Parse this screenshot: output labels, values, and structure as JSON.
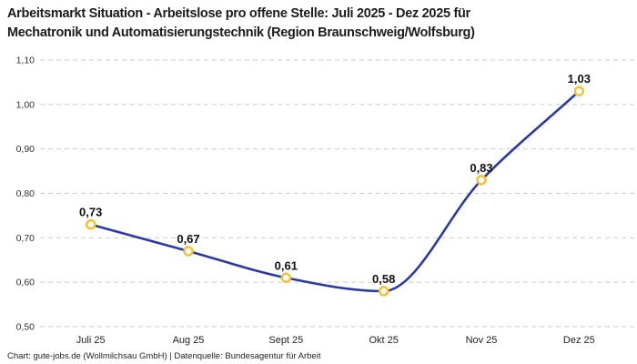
{
  "header": {
    "title_line1": "Arbeitsmarkt Situation - Arbeitslose pro offene Stelle: Juli 2025 - Dez 2025 für",
    "title_line2": "Mechatronik und Automatisierungstechnik (Region Braunschweig/Wolfsburg)"
  },
  "chart_data": {
    "type": "line",
    "title": "Arbeitsmarkt Situation - Arbeitslose pro offene Stelle: Juli 2025 - Dez 2025 für Mechatronik und Automatisierungstechnik (Region Braunschweig/Wolfsburg)",
    "categories": [
      "Juli 25",
      "Aug 25",
      "Sept 25",
      "Okt 25",
      "Nov 25",
      "Dez 25"
    ],
    "values": [
      0.73,
      0.67,
      0.61,
      0.58,
      0.83,
      1.03
    ],
    "point_labels": [
      "0,73",
      "0,67",
      "0,61",
      "0,58",
      "0,83",
      "1,03"
    ],
    "y_ticks": [
      {
        "value": 0.5,
        "label": "0,50"
      },
      {
        "value": 0.6,
        "label": "0,60"
      },
      {
        "value": 0.7,
        "label": "0,70"
      },
      {
        "value": 0.8,
        "label": "0,80"
      },
      {
        "value": 0.9,
        "label": "0,90"
      },
      {
        "value": 1.0,
        "label": "1,00"
      },
      {
        "value": 1.1,
        "label": "1,10"
      }
    ],
    "ylim": [
      0.5,
      1.1
    ],
    "xlabel": "",
    "ylabel": "",
    "grid": "horizontal-dashed",
    "legend": "none",
    "line_color": "#2b3aa0",
    "marker_stroke_color": "#f5c033",
    "marker_fill_color": "#ffffff",
    "gridline_color": "#cccccc"
  },
  "footer": {
    "text": "Chart: gute-jobs.de (Wollmilchsau GmbH) | Datenquelle: Bundesagentur für Arbeit"
  }
}
